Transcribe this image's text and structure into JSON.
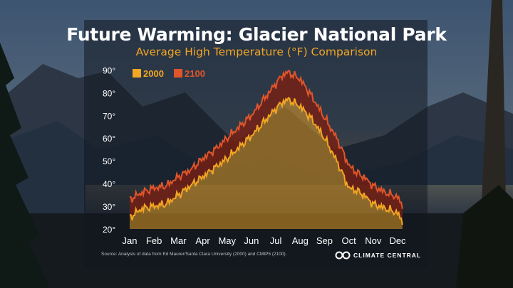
{
  "chart_data": {
    "type": "area",
    "title": "Future Warming: Glacier National Park",
    "subtitle": "Average High Temperature (°F) Comparison",
    "categories": [
      "Jan",
      "Feb",
      "Mar",
      "Apr",
      "May",
      "Jun",
      "Jul",
      "Aug",
      "Sep",
      "Oct",
      "Nov",
      "Dec"
    ],
    "y_ticks": [
      "20°",
      "30°",
      "40°",
      "50°",
      "60°",
      "70°",
      "80°",
      "90°"
    ],
    "ylim": [
      20,
      92
    ],
    "legend_position": "top-left",
    "series": [
      {
        "name": "2000",
        "color": "#f2a623",
        "x": [
          0,
          0.5,
          1,
          1.5,
          2,
          2.5,
          3,
          3.5,
          4,
          4.5,
          5,
          5.5,
          6,
          6.3,
          6.5,
          7,
          7.5,
          8,
          8.5,
          9,
          9.3,
          9.6,
          10,
          10.5,
          11,
          11.2
        ],
        "values": [
          25,
          29,
          30,
          31,
          35,
          39,
          43,
          47,
          51,
          56,
          61,
          67,
          73,
          76,
          77,
          74,
          68,
          60,
          50,
          38,
          37,
          35,
          31,
          29,
          27,
          23
        ]
      },
      {
        "name": "2100",
        "color": "#e0552a",
        "x": [
          0,
          0.5,
          1,
          1.5,
          2,
          2.5,
          3,
          3.5,
          4,
          4.5,
          5,
          5.5,
          6,
          6.3,
          6.5,
          7,
          7.5,
          8,
          8.5,
          9,
          9.3,
          9.6,
          10,
          10.5,
          11,
          11.2
        ],
        "values": [
          33,
          36,
          38,
          39,
          43,
          46,
          51,
          55,
          60,
          65,
          70,
          77,
          84,
          88,
          89,
          86,
          78,
          69,
          60,
          48,
          45,
          43,
          39,
          36,
          34,
          30
        ]
      }
    ]
  },
  "footer": {
    "source": "Source: Analysis of data from Ed Maurer/Santa Clara University (2000) and CMIP5 (2100).",
    "brand": "CLIMATE CENTRAL"
  },
  "colors": {
    "panel": "#121820",
    "accent_orange": "#f2a623",
    "accent_red": "#e0552a"
  }
}
